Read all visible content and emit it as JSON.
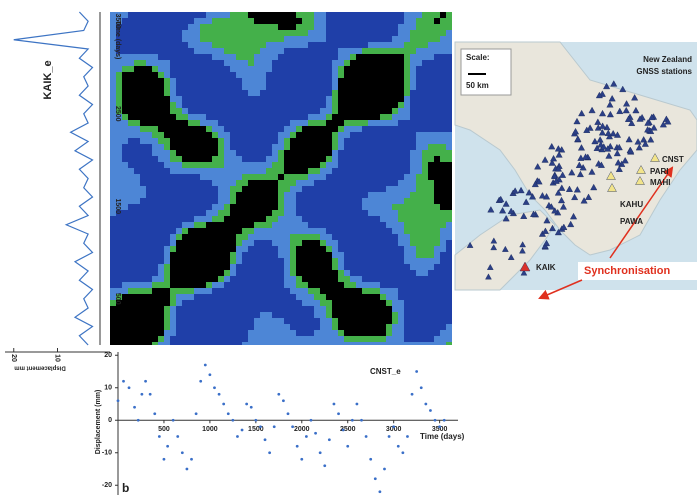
{
  "chart_data": [
    {
      "type": "line",
      "orientation": "vertical",
      "title": "KAIK_e",
      "value_label": "Displacement mm",
      "x": [
        0,
        100,
        200,
        300,
        400,
        500,
        600,
        700,
        800,
        900,
        1000,
        1100,
        1200,
        1300,
        1400,
        1500,
        1600,
        1700,
        1800,
        1900,
        2000,
        2100,
        2200,
        2300,
        2400,
        2500,
        2600,
        2700,
        2800,
        2900,
        3000,
        3100,
        3200,
        3300,
        3400,
        3500,
        3600
      ],
      "values": [
        3,
        5,
        2,
        6,
        3,
        4,
        2,
        5,
        3,
        6,
        2,
        4,
        3,
        8,
        3,
        5,
        2,
        4,
        3,
        5,
        2,
        6,
        3,
        7,
        3,
        4,
        2,
        5,
        3,
        4,
        2,
        5,
        3,
        20,
        4,
        3,
        5
      ],
      "color": "#3d74c4",
      "xlim": [
        0,
        3600
      ],
      "ylim": [
        22,
        -2
      ],
      "yticks": [
        20,
        10
      ]
    },
    {
      "type": "scatter",
      "title": "CNST_e",
      "x_label": "Time (days)",
      "y_label": "Displacement (mm)",
      "x": [
        0,
        60,
        120,
        180,
        220,
        260,
        300,
        350,
        400,
        450,
        500,
        540,
        600,
        650,
        700,
        750,
        800,
        850,
        900,
        950,
        1000,
        1050,
        1100,
        1150,
        1200,
        1250,
        1300,
        1350,
        1400,
        1450,
        1500,
        1550,
        1600,
        1650,
        1700,
        1750,
        1800,
        1850,
        1900,
        1950,
        2000,
        2050,
        2100,
        2150,
        2200,
        2250,
        2300,
        2350,
        2400,
        2450,
        2500,
        2550,
        2600,
        2650,
        2700,
        2750,
        2800,
        2850,
        2900,
        2950,
        3000,
        3050,
        3100,
        3150,
        3200,
        3250,
        3300,
        3350,
        3400,
        3450,
        3500,
        3550
      ],
      "values": [
        6,
        12,
        10,
        4,
        0,
        8,
        12,
        8,
        2,
        -5,
        -12,
        -8,
        0,
        -5,
        -10,
        -15,
        -12,
        2,
        12,
        17,
        14,
        10,
        8,
        5,
        2,
        0,
        -5,
        -3,
        5,
        4,
        0,
        -2,
        -6,
        -10,
        -2,
        8,
        6,
        2,
        -2,
        -8,
        -12,
        -5,
        0,
        -4,
        -10,
        -14,
        -6,
        5,
        2,
        -3,
        -8,
        0,
        5,
        0,
        -5,
        -12,
        -18,
        -22,
        -15,
        -5,
        -2,
        -8,
        -10,
        -5,
        8,
        15,
        10,
        5,
        3,
        0,
        -2,
        0
      ],
      "color": "#3a6fc8",
      "xlim": [
        0,
        3700
      ],
      "ylim": [
        -23,
        21
      ],
      "xticks": [
        500,
        1000,
        1500,
        2000,
        2500,
        3000,
        3500
      ],
      "yticks": [
        20,
        10,
        0,
        -10,
        -20
      ]
    }
  ],
  "panel_label": "b",
  "recurrence_plot": {
    "axis_label": "Time (days)",
    "ylim": [
      0,
      3600
    ],
    "yticks": [
      500,
      1500,
      2500,
      3500
    ]
  },
  "map": {
    "scale_title": "Scale:",
    "scale_text": "50 km",
    "title_line1": "New Zealand",
    "title_line2": "GNSS stations",
    "stations": [
      "CNST",
      "PARI",
      "MAHI",
      "KAHU",
      "PAWA",
      "KAIK"
    ],
    "arrow_label": "Synchronisation"
  }
}
